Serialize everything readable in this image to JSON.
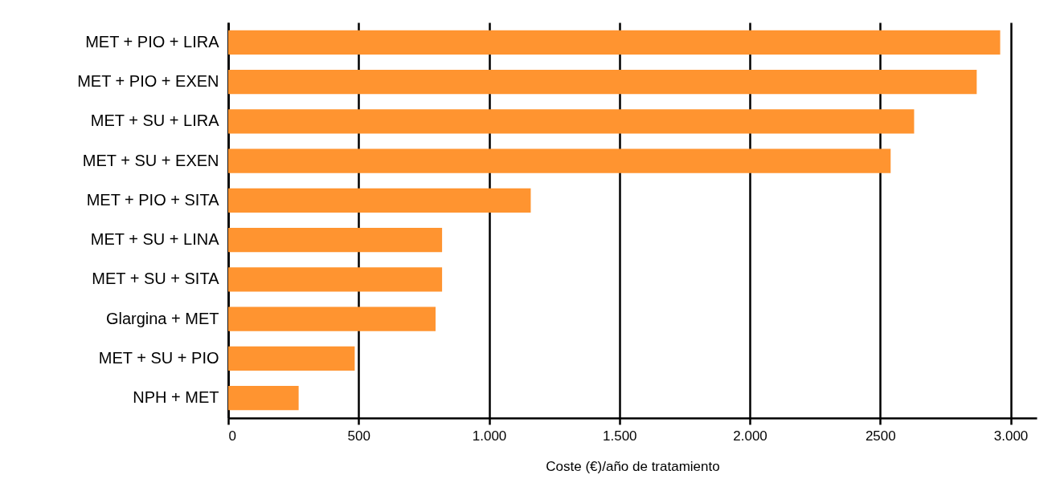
{
  "chart_data": {
    "type": "bar",
    "orientation": "horizontal",
    "xlabel": "Coste (€)/año de tratamiento",
    "categories": [
      "MET + PIO + LIRA",
      "MET + PIO + EXEN",
      "MET + SU + LIRA",
      "MET + SU + EXEN",
      "MET + PIO + SITA",
      "MET + SU + LINA",
      "MET + SU + SITA",
      "Glargina + MET",
      "MET + SU + PIO",
      "NPH + MET"
    ],
    "values": [
      2960,
      2870,
      2630,
      2540,
      1160,
      820,
      820,
      795,
      485,
      270
    ],
    "color": "#ff9430",
    "xlim": [
      0,
      3100
    ],
    "xticks": [
      0,
      500,
      {
        "value": 1000,
        "label": "1.000"
      },
      {
        "value": 1500,
        "label": "1.500"
      },
      {
        "value": 2000,
        "label": "2.000"
      },
      2500,
      {
        "value": 3000,
        "label": "3.000"
      }
    ],
    "grid": "x"
  }
}
